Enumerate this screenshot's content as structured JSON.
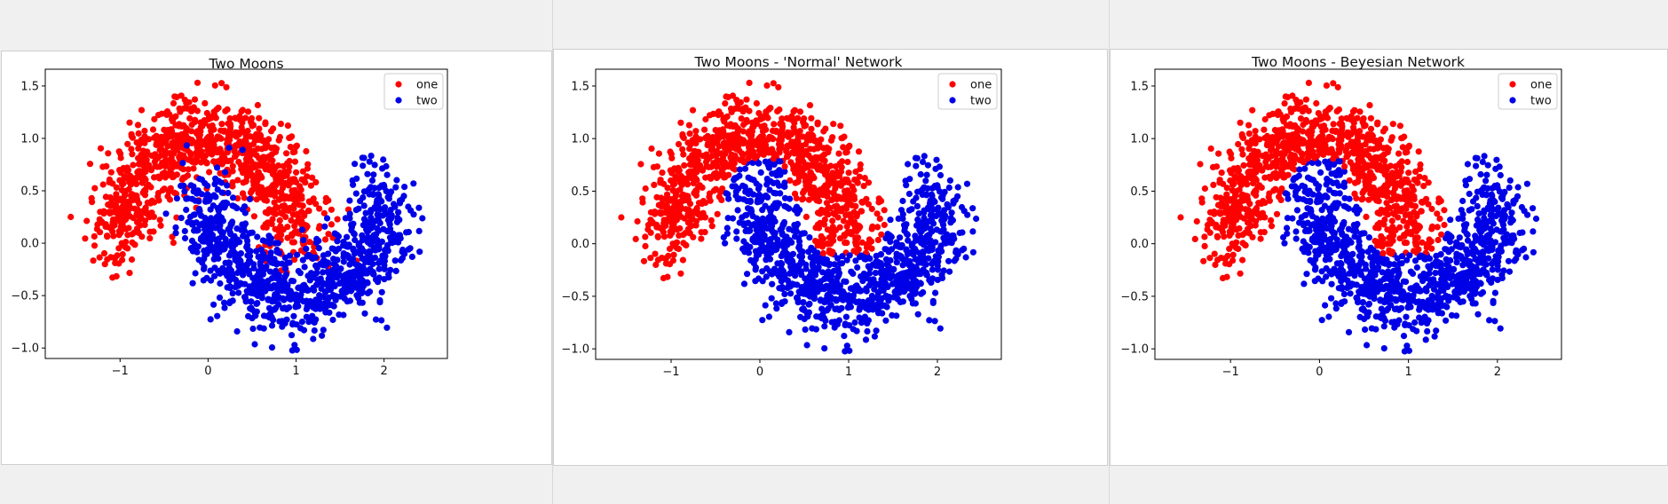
{
  "colors": {
    "one": "#ff0000",
    "two": "#0000e6"
  },
  "chart_data": [
    {
      "type": "scatter",
      "title": "Two Moons",
      "xlabel": "",
      "ylabel": "",
      "xlim": [
        -1.85,
        2.72
      ],
      "ylim": [
        -1.1,
        1.66
      ],
      "xticks": [
        -1,
        0,
        1,
        2
      ],
      "yticks": [
        -1.0,
        -0.5,
        0.0,
        0.5,
        1.0,
        1.5
      ],
      "legend": {
        "position": "top-right",
        "entries": [
          "one",
          "two"
        ]
      },
      "grid": false,
      "noise": 0.2,
      "seed": 11,
      "series": [
        {
          "name": "one",
          "color": "#ff0000",
          "points_approx": 1000,
          "shape": "upper-moon"
        },
        {
          "name": "two",
          "color": "#0000e6",
          "points_approx": 1000,
          "shape": "lower-moon"
        }
      ]
    },
    {
      "type": "scatter",
      "title": "Two Moons - 'Normal' Network",
      "xlabel": "",
      "ylabel": "",
      "xlim": [
        -1.85,
        2.72
      ],
      "ylim": [
        -1.1,
        1.66
      ],
      "xticks": [
        -1,
        0,
        1,
        2
      ],
      "yticks": [
        -1.0,
        -0.5,
        0.0,
        0.5,
        1.0,
        1.5
      ],
      "legend": {
        "position": "top-right",
        "entries": [
          "one",
          "two"
        ]
      },
      "grid": false,
      "noise": 0.2,
      "seed": 11,
      "series": [
        {
          "name": "one",
          "color": "#ff0000",
          "points_approx": 1000,
          "shape": "predicted upper-moon"
        },
        {
          "name": "two",
          "color": "#0000e6",
          "points_approx": 1000,
          "shape": "predicted lower-moon"
        }
      ]
    },
    {
      "type": "scatter",
      "title": "Two Moons - Beyesian Network",
      "xlabel": "",
      "ylabel": "",
      "xlim": [
        -1.85,
        2.72
      ],
      "ylim": [
        -1.1,
        1.66
      ],
      "xticks": [
        -1,
        0,
        1,
        2
      ],
      "yticks": [
        -1.0,
        -0.5,
        0.0,
        0.5,
        1.0,
        1.5
      ],
      "legend": {
        "position": "top-right",
        "entries": [
          "one",
          "two"
        ]
      },
      "grid": false,
      "noise": 0.2,
      "seed": 11,
      "series": [
        {
          "name": "one",
          "color": "#ff0000",
          "points_approx": 1000,
          "shape": "predicted upper-moon"
        },
        {
          "name": "two",
          "color": "#0000e6",
          "points_approx": 1000,
          "shape": "predicted lower-moon"
        }
      ]
    }
  ]
}
